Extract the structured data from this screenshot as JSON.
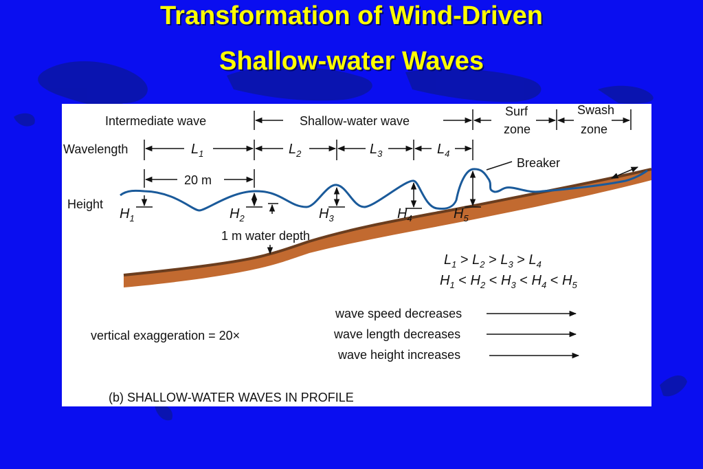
{
  "title": {
    "line1": "Transformation of Wind-Driven",
    "line2": "Shallow-water Waves"
  },
  "colors": {
    "background": "#0a0ef0",
    "title": "#ffff00",
    "wave": "#1a5a9a",
    "seafloor": "#b8652a"
  },
  "figure": {
    "zones": {
      "intermediate": "Intermediate wave",
      "shallow": "Shallow-water wave",
      "surf_1": "Surf",
      "surf_2": "zone",
      "swash_1": "Swash",
      "swash_2": "zone"
    },
    "wavelength_label": "Wavelength",
    "wavelengths": [
      {
        "main": "L",
        "sub": "1"
      },
      {
        "main": "L",
        "sub": "2"
      },
      {
        "main": "L",
        "sub": "3"
      },
      {
        "main": "L",
        "sub": "4"
      }
    ],
    "scale_label": "20 m",
    "height_label": "Height",
    "heights": [
      {
        "main": "H",
        "sub": "1"
      },
      {
        "main": "H",
        "sub": "2"
      },
      {
        "main": "H",
        "sub": "3"
      },
      {
        "main": "H",
        "sub": "4"
      },
      {
        "main": "H",
        "sub": "5"
      }
    ],
    "breaker_label": "Breaker",
    "depth_label": "1 m water depth",
    "relation_lengths": {
      "terms": [
        {
          "main": "L",
          "sub": "1"
        },
        {
          "main": "L",
          "sub": "2"
        },
        {
          "main": "L",
          "sub": "3"
        },
        {
          "main": "L",
          "sub": "4"
        }
      ],
      "operator": ">"
    },
    "relation_heights": {
      "terms": [
        {
          "main": "H",
          "sub": "1"
        },
        {
          "main": "H",
          "sub": "2"
        },
        {
          "main": "H",
          "sub": "3"
        },
        {
          "main": "H",
          "sub": "4"
        },
        {
          "main": "H",
          "sub": "5"
        }
      ],
      "operator": "<"
    },
    "exaggeration": "vertical exaggeration = 20×",
    "trends": [
      "wave speed decreases",
      "wave length decreases",
      "wave height increases"
    ],
    "caption": "(b) SHALLOW-WATER WAVES IN PROFILE"
  }
}
